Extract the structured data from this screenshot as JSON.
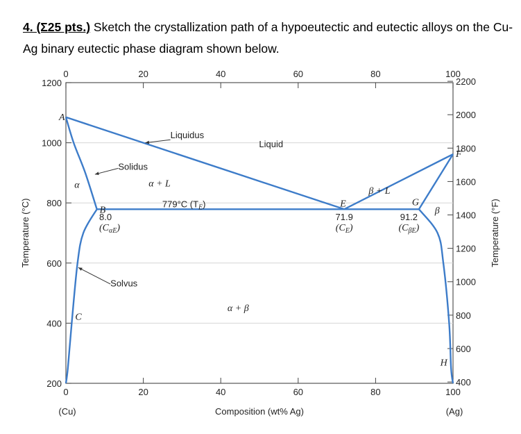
{
  "question": {
    "number": "4. (Σ25 pts.)",
    "text": " Sketch the crystallization path of a hypoeutectic and eutectic alloys on the Cu-Ag binary eutectic phase diagram shown below."
  },
  "chart_data": {
    "type": "phase-diagram",
    "title": "",
    "xlabel": "Composition (wt% Ag)",
    "ylabel": "Temperature (°C)",
    "ylabel_right": "Temperature (°F)",
    "xlim": [
      0,
      100
    ],
    "ylim": [
      200,
      1200
    ],
    "x_ticks": [
      0,
      20,
      40,
      60,
      80,
      100
    ],
    "y_ticks": [
      200,
      400,
      600,
      800,
      1000,
      1200
    ],
    "y_ticks_right": [
      400,
      600,
      800,
      1000,
      1200,
      1400,
      1600,
      1800,
      2000,
      2200
    ],
    "x_endpoint_labels": [
      "(Cu)",
      "(Ag)"
    ],
    "line_color": "#3d7cc9",
    "eutectic": {
      "temperature": 779,
      "composition": 71.9,
      "label": "779°C (T",
      "label_sub": "E",
      "label_end": ")"
    },
    "liquidus": [
      [
        0,
        1085
      ],
      [
        71.9,
        779
      ],
      [
        100,
        962
      ]
    ],
    "solidus_cu": [
      [
        0,
        1085
      ],
      [
        2,
        1000
      ],
      [
        5,
        900
      ],
      [
        8.0,
        779
      ]
    ],
    "solidus_ag": [
      [
        100,
        962
      ],
      [
        91.2,
        779
      ]
    ],
    "solvus_cu": [
      [
        8.0,
        779
      ],
      [
        4.5,
        700
      ],
      [
        3,
        600
      ],
      [
        1.5,
        400
      ],
      [
        0.5,
        250
      ],
      [
        0,
        200
      ]
    ],
    "solvus_ag": [
      [
        91.2,
        779
      ],
      [
        96,
        700
      ],
      [
        97.5,
        600
      ],
      [
        99,
        400
      ],
      [
        99.5,
        250
      ],
      [
        100,
        200
      ]
    ],
    "points": [
      {
        "name": "A",
        "x": 0,
        "y": 1085
      },
      {
        "name": "B",
        "x": 8.0,
        "y": 779
      },
      {
        "name": "C",
        "x": 1.5,
        "y": 400
      },
      {
        "name": "E",
        "x": 71.9,
        "y": 779
      },
      {
        "name": "F",
        "x": 100,
        "y": 962
      },
      {
        "name": "G",
        "x": 91.2,
        "y": 779
      },
      {
        "name": "H",
        "x": 98.5,
        "y": 300
      }
    ],
    "annotations": {
      "liquidus": "Liquidus",
      "liquid": "Liquid",
      "solidus": "Solidus",
      "solvus": "Solvus",
      "alpha": "α",
      "beta": "β",
      "alpha_l": "α + L",
      "beta_l": "β + L",
      "alpha_beta": "α + β",
      "c_alpha_value": "8.0",
      "c_alpha_label": "(C",
      "c_alpha_sub": "αE",
      "c_e_value": "71.9",
      "c_e_label": "(C",
      "c_e_sub": "E",
      "c_beta_value": "91.2",
      "c_beta_label": "(C",
      "c_beta_sub": "βE",
      "close_paren": ")"
    }
  }
}
